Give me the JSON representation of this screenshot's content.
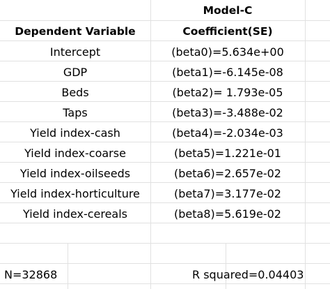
{
  "table": {
    "model_label": "Model-C",
    "col1_header": "Dependent Variable",
    "col2_header": "Coefficient(SE)",
    "rows": [
      {
        "variable": "Intercept",
        "coefficient": "(beta0)=5.634e+00"
      },
      {
        "variable": "GDP",
        "coefficient": "(beta1)=-6.145e-08"
      },
      {
        "variable": "Beds",
        "coefficient": "(beta2)= 1.793e-05"
      },
      {
        "variable": "Taps",
        "coefficient": "(beta3)=-3.488e-02"
      },
      {
        "variable": "Yield index-cash",
        "coefficient": "(beta4)=-2.034e-03"
      },
      {
        "variable": "Yield index-coarse",
        "coefficient": "(beta5)=1.221e-01"
      },
      {
        "variable": "Yield index-oilseeds",
        "coefficient": "(beta6)=2.657e-02"
      },
      {
        "variable": "Yield index-horticulture",
        "coefficient": "(beta7)=3.177e-02"
      },
      {
        "variable": "Yield index-cereals",
        "coefficient": "(beta8)=5.619e-02"
      }
    ],
    "footer": {
      "n": "N=32868",
      "r_squared": "R squared=0.04403"
    }
  }
}
